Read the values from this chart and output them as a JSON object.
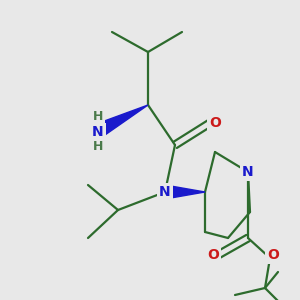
{
  "bg_color": "#e8e8e8",
  "bond_color": "#2d6b2d",
  "bond_width": 1.6,
  "atom_colors": {
    "N": "#1a1acc",
    "O": "#cc1a1a",
    "H": "#4a7a4a",
    "C": "#2d6b2d"
  }
}
